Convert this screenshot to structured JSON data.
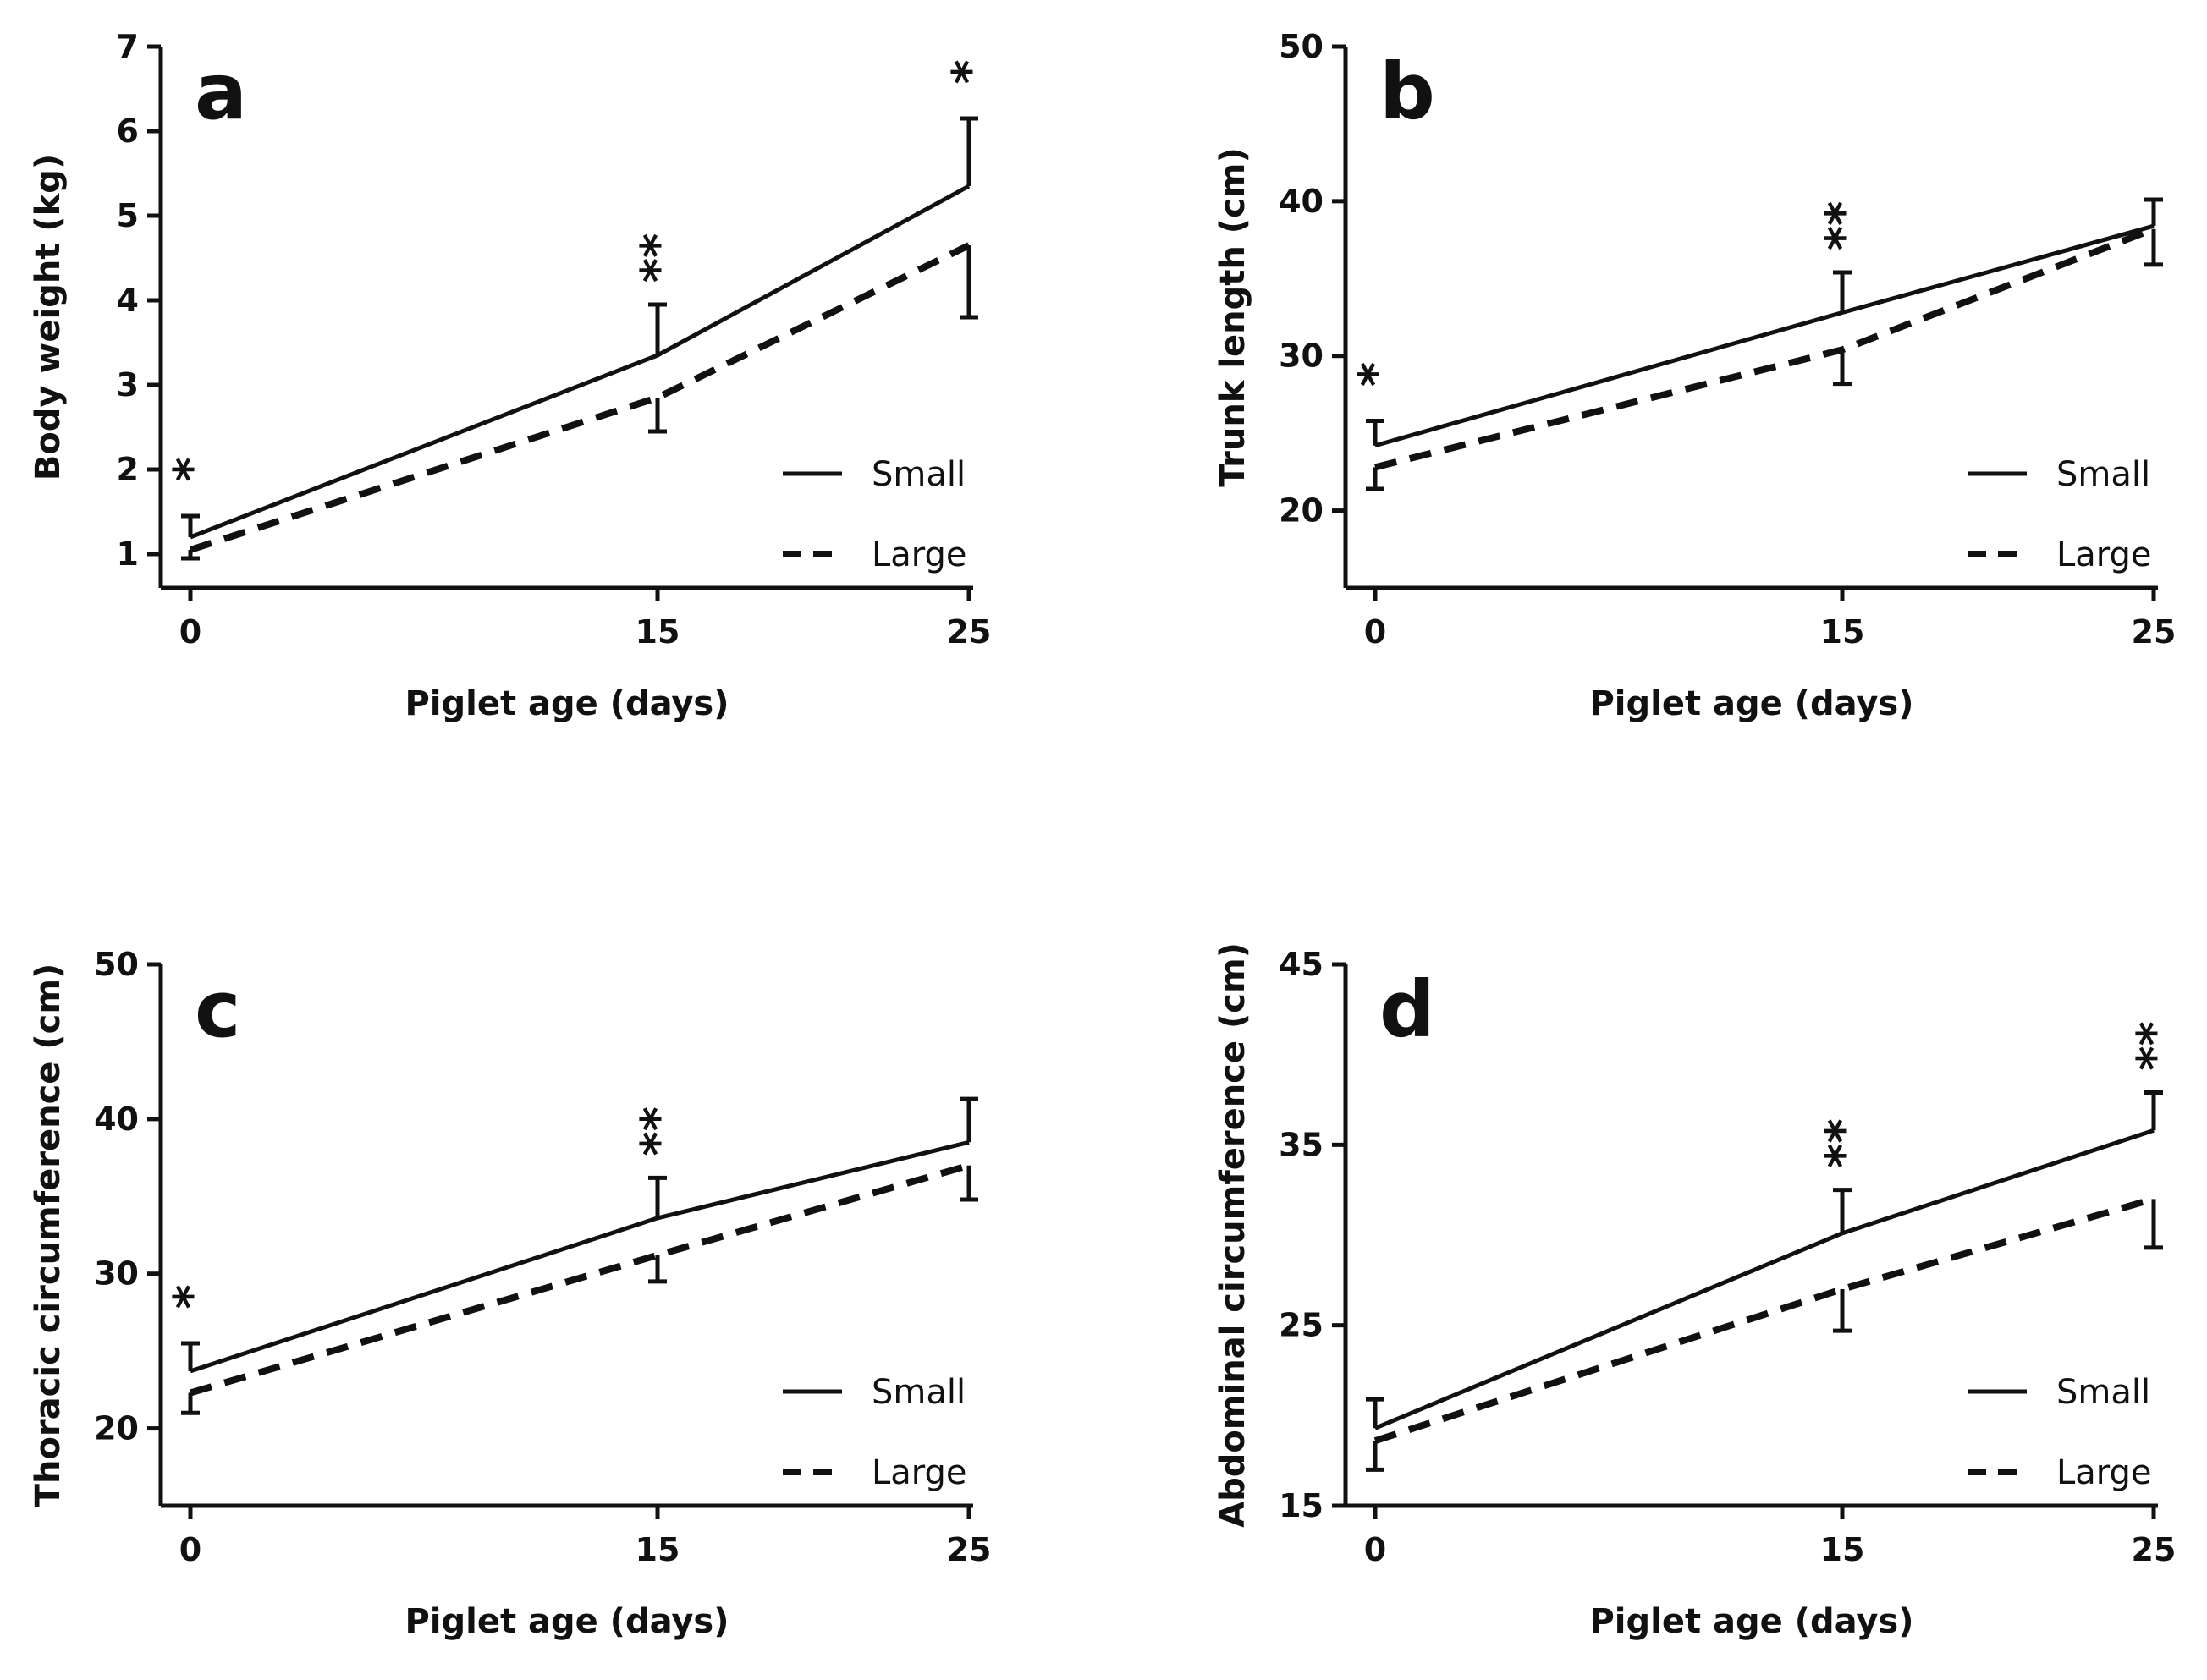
{
  "chart_data": [
    {
      "type": "line",
      "panel": "a",
      "xlabel": "Piglet age (days)",
      "ylabel": "Body weight (kg)",
      "x": [
        0,
        15,
        25
      ],
      "x_ticks": [
        "0",
        "15",
        "25"
      ],
      "ylim": [
        0.6,
        7
      ],
      "y_ticks": [
        "1",
        "2",
        "3",
        "4",
        "5",
        "6",
        "7"
      ],
      "legend_position": "bottom-right",
      "series": [
        {
          "name": "Small",
          "style": "solid",
          "values": [
            1.2,
            3.35,
            5.35
          ],
          "error_plus": [
            0.25,
            0.6,
            0.8
          ],
          "error_minus": [
            0,
            0,
            0
          ]
        },
        {
          "name": "Large",
          "style": "dashed",
          "values": [
            1.05,
            2.85,
            4.65
          ],
          "error_plus": [
            0,
            0,
            0
          ],
          "error_minus": [
            0.1,
            0.4,
            0.85
          ]
        }
      ],
      "significance": [
        "*",
        "**",
        "*"
      ]
    },
    {
      "type": "line",
      "panel": "b",
      "xlabel": "Piglet age (days)",
      "ylabel": "Trunk length (cm)",
      "x": [
        0,
        15,
        25
      ],
      "x_ticks": [
        "0",
        "15",
        "25"
      ],
      "ylim": [
        15,
        50
      ],
      "y_ticks": [
        "20",
        "30",
        "40",
        "50"
      ],
      "legend_position": "bottom-right",
      "series": [
        {
          "name": "Small",
          "style": "solid",
          "values": [
            24.2,
            32.8,
            38.4
          ],
          "error_plus": [
            1.6,
            2.6,
            1.7
          ],
          "error_minus": [
            0,
            0,
            0
          ]
        },
        {
          "name": "Large",
          "style": "dashed",
          "values": [
            22.8,
            30.4,
            38.2
          ],
          "error_plus": [
            0,
            0,
            0
          ],
          "error_minus": [
            1.4,
            2.2,
            2.3
          ]
        }
      ],
      "significance": [
        "*",
        "**",
        ""
      ]
    },
    {
      "type": "line",
      "panel": "c",
      "xlabel": "Piglet age (days)",
      "ylabel": "Thoracic circumference (cm)",
      "x": [
        0,
        15,
        25
      ],
      "x_ticks": [
        "0",
        "15",
        "25"
      ],
      "ylim": [
        15,
        50
      ],
      "y_ticks": [
        "20",
        "30",
        "40",
        "50"
      ],
      "legend_position": "bottom-right",
      "series": [
        {
          "name": "Small",
          "style": "solid",
          "values": [
            23.7,
            33.6,
            38.5
          ],
          "error_plus": [
            1.8,
            2.6,
            2.8
          ],
          "error_minus": [
            0,
            0,
            0
          ]
        },
        {
          "name": "Large",
          "style": "dashed",
          "values": [
            22.3,
            31.2,
            37.0
          ],
          "error_plus": [
            0,
            0,
            0
          ],
          "error_minus": [
            1.3,
            1.7,
            2.2
          ]
        }
      ],
      "significance": [
        "*",
        "**",
        ""
      ]
    },
    {
      "type": "line",
      "panel": "d",
      "xlabel": "Piglet age (days)",
      "ylabel": "Abdominal circumference (cm)",
      "x": [
        0,
        15,
        25
      ],
      "x_ticks": [
        "0",
        "15",
        "25"
      ],
      "ylim": [
        15,
        45
      ],
      "y_ticks": [
        "15",
        "25",
        "35",
        "45"
      ],
      "legend_position": "bottom-right",
      "series": [
        {
          "name": "Small",
          "style": "solid",
          "values": [
            19.3,
            30.1,
            35.8
          ],
          "error_plus": [
            1.6,
            2.4,
            2.1
          ],
          "error_minus": [
            0,
            0,
            0
          ]
        },
        {
          "name": "Large",
          "style": "dashed",
          "values": [
            18.6,
            27.0,
            32.0
          ],
          "error_plus": [
            0,
            0,
            0
          ],
          "error_minus": [
            1.6,
            2.3,
            2.7
          ]
        }
      ],
      "significance": [
        "",
        "**",
        "**"
      ]
    }
  ]
}
